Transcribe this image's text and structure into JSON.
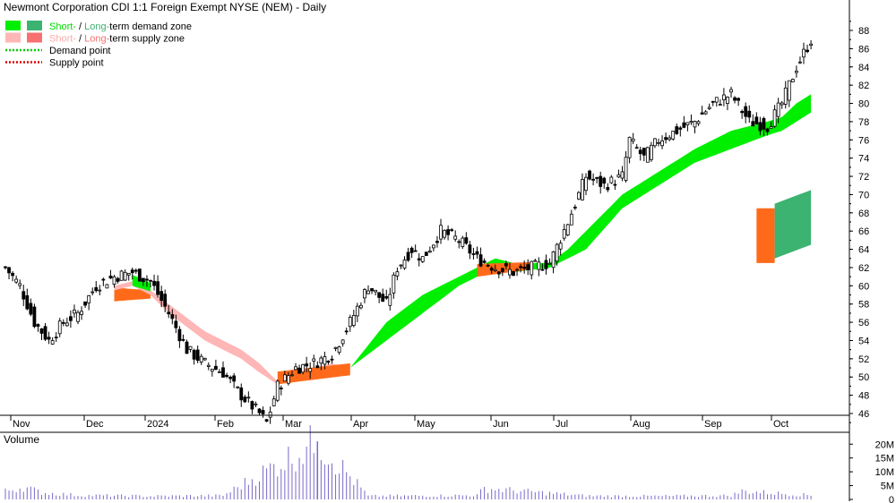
{
  "title": "Newmont Corporation CDI 1:1 Foreign Exempt NYSE (NEM) - Daily",
  "legend": [
    {
      "swatches": [
        "#00ee00",
        "#3cb371"
      ],
      "parts": [
        {
          "text": "Short-",
          "color": "#00dd00"
        },
        {
          "text": " / ",
          "color": "#000000"
        },
        {
          "text": "Long-",
          "color": "#3cb371"
        },
        {
          "text": "term demand zone",
          "color": "#000000"
        }
      ]
    },
    {
      "swatches": [
        "#ffb6b6",
        "#f87070"
      ],
      "parts": [
        {
          "text": "Short-",
          "color": "#ffaaaa"
        },
        {
          "text": " / ",
          "color": "#000000"
        },
        {
          "text": "Long-",
          "color": "#f87070"
        },
        {
          "text": "term supply zone",
          "color": "#000000"
        }
      ]
    },
    {
      "line": "#00cc00",
      "parts": [
        {
          "text": "Demand point",
          "color": "#000000"
        }
      ]
    },
    {
      "line": "#dd0000",
      "parts": [
        {
          "text": "Supply point",
          "color": "#000000"
        }
      ]
    }
  ],
  "colors": {
    "demand_short": "#00ee00",
    "demand_long": "#3cb371",
    "supply_short": "#ffb6b6",
    "supply_long": "#f87070",
    "transition": "#ff6a1a",
    "volume_bar": "#7b68c8",
    "axis": "#000000"
  },
  "chart_data": [
    {
      "type": "candlestick",
      "title": "Newmont Corporation CDI 1:1 Foreign Exempt NYSE (NEM) - Daily",
      "x_months": [
        "Nov",
        "Dec",
        "2024",
        "Feb",
        "Mar",
        "Apr",
        "May",
        "Jun",
        "Jul",
        "Aug",
        "Sep",
        "Oct"
      ],
      "y_ticks": [
        46,
        48,
        50,
        52,
        54,
        56,
        58,
        60,
        62,
        64,
        66,
        68,
        70,
        72,
        74,
        76,
        78,
        80,
        82,
        84,
        86,
        88
      ],
      "ylim": [
        44,
        89
      ],
      "grid": false,
      "close_samples": [
        [
          0,
          62
        ],
        [
          4,
          60
        ],
        [
          8,
          56
        ],
        [
          12,
          54
        ],
        [
          16,
          56
        ],
        [
          20,
          57
        ],
        [
          25,
          60
        ],
        [
          30,
          61
        ],
        [
          35,
          61.5
        ],
        [
          40,
          60.5
        ],
        [
          45,
          57
        ],
        [
          50,
          53
        ],
        [
          55,
          51.5
        ],
        [
          60,
          50.5
        ],
        [
          65,
          48
        ],
        [
          70,
          46
        ],
        [
          72,
          45
        ],
        [
          75,
          49
        ],
        [
          80,
          51
        ],
        [
          85,
          51.5
        ],
        [
          90,
          52.5
        ],
        [
          95,
          56
        ],
        [
          100,
          60
        ],
        [
          105,
          58
        ],
        [
          108,
          62
        ],
        [
          112,
          64
        ],
        [
          115,
          63
        ],
        [
          120,
          66
        ],
        [
          125,
          65
        ],
        [
          130,
          63
        ],
        [
          135,
          62
        ],
        [
          140,
          61.5
        ],
        [
          145,
          62
        ],
        [
          150,
          62.5
        ],
        [
          155,
          67
        ],
        [
          160,
          72
        ],
        [
          165,
          71
        ],
        [
          170,
          72
        ],
        [
          172,
          76
        ],
        [
          176,
          74
        ],
        [
          180,
          76
        ],
        [
          185,
          77
        ],
        [
          190,
          78
        ],
        [
          195,
          80
        ],
        [
          200,
          81
        ],
        [
          205,
          78
        ],
        [
          210,
          77.5
        ],
        [
          214,
          80
        ],
        [
          218,
          84
        ],
        [
          222,
          87
        ]
      ],
      "zones": {
        "demand_short_upper": [
          [
            95,
            51
          ],
          [
            105,
            56
          ],
          [
            115,
            59
          ],
          [
            125,
            61
          ],
          [
            130,
            62
          ],
          [
            135,
            63
          ],
          [
            140,
            62.5
          ],
          [
            150,
            62.5
          ],
          [
            155,
            64
          ],
          [
            160,
            66
          ],
          [
            170,
            70
          ],
          [
            180,
            72.5
          ],
          [
            190,
            75
          ],
          [
            200,
            77
          ],
          [
            210,
            78
          ],
          [
            214,
            78.5
          ],
          [
            218,
            80
          ],
          [
            222,
            81
          ]
        ],
        "demand_short_lower": [
          [
            95,
            51
          ],
          [
            105,
            54
          ],
          [
            115,
            57
          ],
          [
            125,
            60
          ],
          [
            130,
            61
          ],
          [
            135,
            62
          ],
          [
            140,
            61.5
          ],
          [
            150,
            62
          ],
          [
            155,
            63
          ],
          [
            160,
            64
          ],
          [
            170,
            68.5
          ],
          [
            180,
            71
          ],
          [
            190,
            73.5
          ],
          [
            200,
            75
          ],
          [
            210,
            76.5
          ],
          [
            214,
            77
          ],
          [
            218,
            78
          ],
          [
            222,
            79
          ]
        ],
        "supply_short_upper": [
          [
            30,
            60
          ],
          [
            35,
            60.5
          ],
          [
            40,
            59.5
          ],
          [
            45,
            58
          ],
          [
            50,
            56.5
          ],
          [
            55,
            55
          ],
          [
            60,
            54
          ],
          [
            65,
            53
          ],
          [
            70,
            51.5
          ],
          [
            75,
            49.5
          ],
          [
            80,
            50.5
          ],
          [
            85,
            51
          ],
          [
            90,
            51.5
          ],
          [
            95,
            51
          ]
        ],
        "supply_short_lower": [
          [
            30,
            59.5
          ],
          [
            35,
            60
          ],
          [
            40,
            59
          ],
          [
            45,
            57
          ],
          [
            50,
            55.5
          ],
          [
            55,
            54
          ],
          [
            60,
            53
          ],
          [
            65,
            52
          ],
          [
            70,
            50.5
          ],
          [
            75,
            49.2
          ],
          [
            80,
            49.8
          ],
          [
            85,
            50.4
          ],
          [
            90,
            51
          ],
          [
            95,
            51
          ]
        ],
        "long_term_box": {
          "x_start": 207,
          "x_split": 212,
          "x_end": 222,
          "supply_range": [
            62.5,
            68.5
          ],
          "demand_range": [
            63,
            70.5
          ]
        }
      }
    },
    {
      "type": "bar",
      "title": "Volume",
      "y_ticks": [
        "0",
        "5M",
        "10M",
        "15M",
        "20M"
      ],
      "ylim": [
        0,
        23000000
      ],
      "spike_bar": {
        "x": 86,
        "value": 21000000
      },
      "values_sample": [
        [
          0,
          3000000
        ],
        [
          5,
          4500000
        ],
        [
          10,
          2500000
        ],
        [
          20,
          1500000
        ],
        [
          40,
          1200000
        ],
        [
          60,
          1400000
        ],
        [
          86,
          21000000
        ],
        [
          100,
          1200000
        ],
        [
          130,
          1500000
        ],
        [
          132,
          4000000
        ],
        [
          160,
          1300000
        ],
        [
          180,
          1200000
        ],
        [
          200,
          1400000
        ],
        [
          203,
          3000000
        ],
        [
          222,
          1500000
        ]
      ]
    }
  ]
}
